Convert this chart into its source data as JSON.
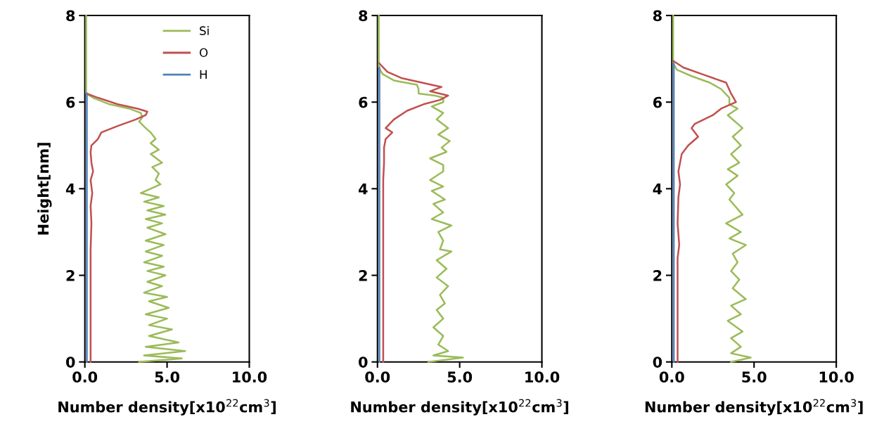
{
  "chart_data": [
    {
      "type": "line",
      "ylabel": "Height[nm]",
      "xlabel": "Number density[x10$^{22}$cm$^{3}$]",
      "xlim": [
        0,
        10
      ],
      "ylim": [
        0,
        8
      ],
      "xticks": [
        {
          "value": 0,
          "label": "0.0"
        },
        {
          "value": 5,
          "label": "5.0"
        },
        {
          "value": 10,
          "label": "10.0"
        }
      ],
      "yticks": [
        0,
        2,
        4,
        6,
        8
      ],
      "grid": false,
      "legend": "top",
      "series": [
        {
          "name": "Si",
          "color": "#9bbb59",
          "x": [
            0.08,
            0.08,
            0.5,
            1.5,
            2.7,
            3.4,
            3.5,
            3.3,
            3.7,
            4.0,
            4.3,
            4.0,
            4.5,
            4.0,
            4.7,
            4.1,
            4.5,
            4.3,
            4.6,
            3.4,
            4.5,
            3.6,
            4.8,
            3.8,
            4.9,
            3.7,
            4.7,
            3.8,
            4.9,
            3.7,
            4.8,
            3.7,
            4.7,
            3.6,
            4.8,
            3.8,
            4.9,
            3.8,
            4.7,
            3.6,
            5.0,
            3.9,
            5.1,
            3.7,
            5.0,
            3.9,
            5.3,
            3.9,
            5.7,
            3.7,
            6.1,
            3.6,
            5.9,
            3.3
          ],
          "values": [
            8,
            6.2,
            6.1,
            5.95,
            5.85,
            5.75,
            5.65,
            5.55,
            5.4,
            5.3,
            5.15,
            5.05,
            4.9,
            4.8,
            4.6,
            4.5,
            4.35,
            4.2,
            4.1,
            3.9,
            3.8,
            3.7,
            3.6,
            3.5,
            3.4,
            3.3,
            3.2,
            3.1,
            2.95,
            2.8,
            2.7,
            2.55,
            2.45,
            2.3,
            2.2,
            2.1,
            2.0,
            1.85,
            1.75,
            1.6,
            1.5,
            1.4,
            1.25,
            1.1,
            1.0,
            0.85,
            0.75,
            0.6,
            0.45,
            0.35,
            0.25,
            0.15,
            0.08,
            0
          ]
        },
        {
          "name": "O",
          "color": "#c0504d",
          "x": [
            0.1,
            0.8,
            2.0,
            3.2,
            3.8,
            3.7,
            3.1,
            2.0,
            1.0,
            0.8,
            0.4,
            0.35,
            0.4,
            0.5,
            0.35,
            0.45,
            0.35,
            0.4,
            0.35,
            0.35
          ],
          "values": [
            6.2,
            6.1,
            5.95,
            5.85,
            5.78,
            5.7,
            5.6,
            5.45,
            5.3,
            5.15,
            5.0,
            4.85,
            4.6,
            4.4,
            4.2,
            3.9,
            3.6,
            3.2,
            2.6,
            0
          ]
        },
        {
          "name": "H",
          "color": "#4f81bd",
          "x": [
            0.12,
            0.12
          ],
          "values": [
            0,
            6.2
          ]
        }
      ]
    },
    {
      "type": "line",
      "xlabel": "Number density[x10$^{22}$cm$^{3}$]",
      "xlim": [
        0,
        10
      ],
      "ylim": [
        0,
        8
      ],
      "xticks": [
        {
          "value": 0,
          "label": "0.0"
        },
        {
          "value": 5,
          "label": "5.0"
        },
        {
          "value": 10,
          "label": "10.0"
        }
      ],
      "yticks": [
        0,
        2,
        4,
        6,
        8
      ],
      "grid": false,
      "series": [
        {
          "color": "#9bbb59",
          "x": [
            0.08,
            0.08,
            0.3,
            1.0,
            2.4,
            2.5,
            2.5,
            3.5,
            4.0,
            4.0,
            3.3,
            4.0,
            3.6,
            4.3,
            3.7,
            4.4,
            3.9,
            4.2,
            3.2,
            4.0,
            4.0,
            3.2,
            4.0,
            3.3,
            4.1,
            3.4,
            4.0,
            3.3,
            4.5,
            3.7,
            4.0,
            3.8,
            4.5,
            3.6,
            4.2,
            3.6,
            4.3,
            3.8,
            4.1,
            3.6,
            4.0,
            3.4,
            4.0,
            3.7,
            4.3,
            3.4,
            5.2,
            3.1
          ],
          "values": [
            8,
            6.8,
            6.65,
            6.5,
            6.4,
            6.3,
            6.2,
            6.15,
            6.1,
            6.0,
            5.9,
            5.75,
            5.6,
            5.4,
            5.25,
            5.1,
            4.95,
            4.85,
            4.7,
            4.55,
            4.4,
            4.2,
            4.05,
            3.95,
            3.75,
            3.65,
            3.45,
            3.3,
            3.15,
            3.0,
            2.8,
            2.6,
            2.55,
            2.35,
            2.15,
            1.95,
            1.75,
            1.55,
            1.35,
            1.2,
            1.0,
            0.8,
            0.6,
            0.4,
            0.25,
            0.15,
            0.1,
            0
          ]
        },
        {
          "color": "#c0504d",
          "x": [
            0.1,
            0.6,
            1.5,
            2.7,
            3.9,
            3.2,
            4.3,
            3.8,
            2.8,
            1.8,
            1.0,
            0.5,
            0.9,
            0.5,
            0.4,
            0.4,
            0.35,
            0.35,
            0.35,
            0.35,
            0.35
          ],
          "values": [
            6.9,
            6.7,
            6.55,
            6.45,
            6.35,
            6.25,
            6.15,
            6.05,
            5.95,
            5.8,
            5.6,
            5.4,
            5.3,
            5.15,
            4.95,
            4.6,
            4.2,
            3.8,
            3.3,
            2.6,
            0
          ]
        },
        {
          "color": "#4f81bd",
          "x": [
            0.12,
            0.12
          ],
          "values": [
            0,
            6.8
          ]
        }
      ]
    },
    {
      "type": "line",
      "xlabel": "Number density[x10$^{22}$cm$^{3}$]",
      "xlim": [
        0,
        10
      ],
      "ylim": [
        0,
        8
      ],
      "xticks": [
        {
          "value": 0,
          "label": "0.0"
        },
        {
          "value": 5,
          "label": "5.0"
        },
        {
          "value": 10,
          "label": "10.0"
        }
      ],
      "yticks": [
        0,
        2,
        4,
        6,
        8
      ],
      "grid": false,
      "series": [
        {
          "color": "#9bbb59",
          "x": [
            0.08,
            0.08,
            0.3,
            1.2,
            2.3,
            3.0,
            3.5,
            3.5,
            4.0,
            3.4,
            4.3,
            3.7,
            4.2,
            3.6,
            4.1,
            3.4,
            4.0,
            3.3,
            3.8,
            3.5,
            4.3,
            3.3,
            4.2,
            3.5,
            4.5,
            3.7,
            4.0,
            3.6,
            4.1,
            3.7,
            4.5,
            3.6,
            4.2,
            3.4,
            4.3,
            3.6,
            4.2,
            3.6,
            4.8,
            3.6
          ],
          "values": [
            8,
            6.9,
            6.75,
            6.6,
            6.45,
            6.3,
            6.1,
            5.95,
            5.85,
            5.7,
            5.4,
            5.2,
            5.0,
            4.8,
            4.6,
            4.45,
            4.3,
            4.1,
            3.9,
            3.75,
            3.4,
            3.2,
            3.0,
            2.85,
            2.7,
            2.5,
            2.3,
            2.1,
            1.9,
            1.7,
            1.45,
            1.3,
            1.1,
            0.95,
            0.7,
            0.55,
            0.35,
            0.2,
            0.1,
            0
          ]
        },
        {
          "color": "#c0504d",
          "x": [
            0.1,
            0.7,
            1.8,
            3.3,
            3.6,
            3.9,
            3.0,
            2.5,
            1.4,
            1.2,
            1.6,
            1.0,
            0.6,
            0.4,
            0.5,
            0.4,
            0.35,
            0.45,
            0.35,
            0.35,
            0.35
          ],
          "values": [
            6.95,
            6.8,
            6.65,
            6.45,
            6.2,
            6.0,
            5.85,
            5.7,
            5.5,
            5.4,
            5.2,
            5.0,
            4.8,
            4.4,
            4.1,
            3.8,
            3.2,
            2.7,
            2.4,
            1.8,
            0
          ]
        },
        {
          "color": "#4f81bd",
          "x": [
            0.12,
            0.12
          ],
          "values": [
            0,
            6.9
          ]
        }
      ]
    }
  ]
}
